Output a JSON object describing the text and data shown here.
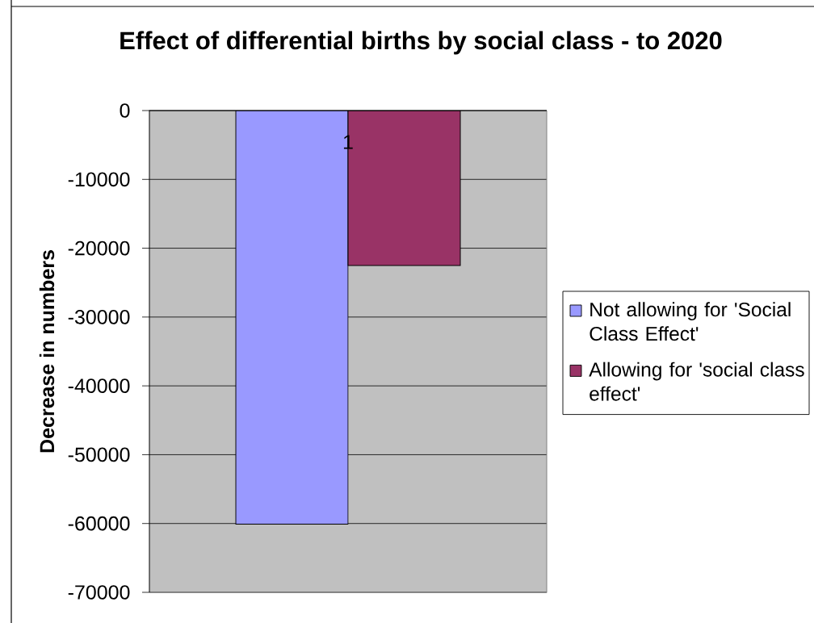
{
  "chart_data": {
    "type": "bar",
    "title": "Effect of differential births by social class - to 2020",
    "ylabel": "Decrease in numbers",
    "categories": [
      "1"
    ],
    "series": [
      {
        "name": "Not allowing for 'Social Class Effect'",
        "color": "#9999ff",
        "values": [
          -60100
        ]
      },
      {
        "name": "Allowing for 'social class effect'",
        "color": "#993366",
        "values": [
          -22500
        ]
      }
    ],
    "ylim": [
      -70000,
      0
    ],
    "yticks": [
      -70000,
      -60000,
      -50000,
      -40000,
      -30000,
      -20000,
      -10000,
      0
    ],
    "grid": "y",
    "legend": "right"
  }
}
